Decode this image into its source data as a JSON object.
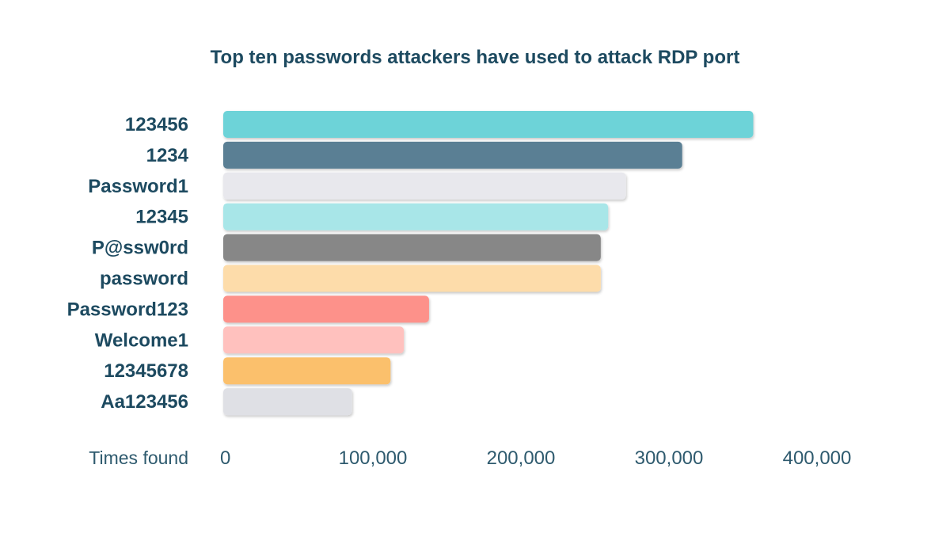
{
  "chart_data": {
    "type": "bar",
    "orientation": "horizontal",
    "title": "Top ten passwords attackers have used to attack RDP port",
    "xlabel": "Times found",
    "ylabel": "",
    "xlim": [
      0,
      400000
    ],
    "xticks": [
      0,
      100000,
      200000,
      300000,
      400000
    ],
    "xtick_labels": [
      "0",
      "100,000",
      "200,000",
      "300,000",
      "400,000"
    ],
    "grid": false,
    "legend": "none",
    "categories": [
      "123456",
      "1234",
      "Password1",
      "12345",
      "P@ssw0rd",
      "password",
      "Password123",
      "Welcome1",
      "12345678",
      "Aa123456"
    ],
    "values": [
      358000,
      310000,
      272000,
      260000,
      255000,
      255000,
      139000,
      122000,
      113000,
      87000
    ],
    "colors": [
      "#6dd3d8",
      "#5a7f94",
      "#e8e8ed",
      "#a8e6e8",
      "#878787",
      "#fddcaa",
      "#fd918a",
      "#ffc1be",
      "#fbc06c",
      "#dfe0e5"
    ]
  }
}
